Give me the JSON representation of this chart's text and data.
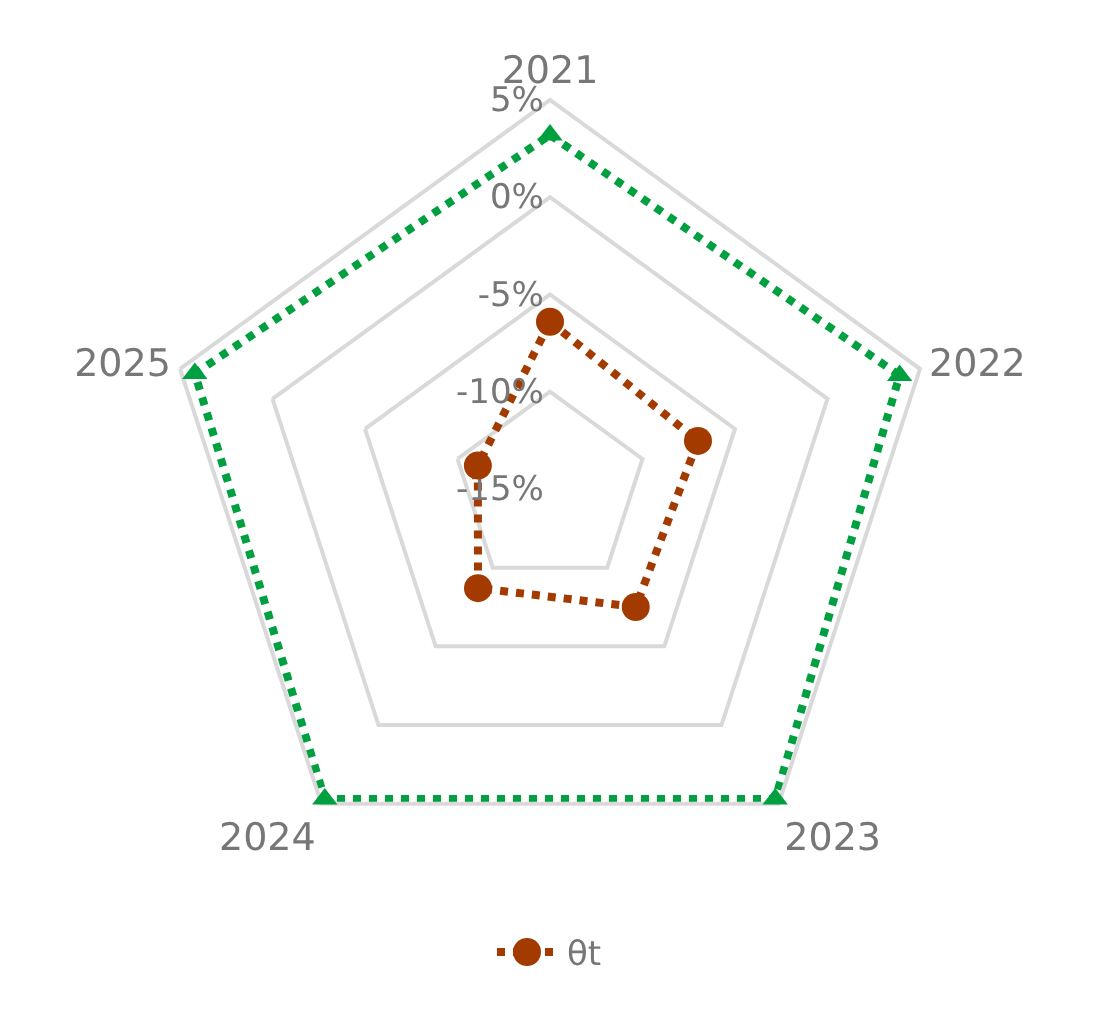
{
  "chart_data": {
    "type": "radar",
    "categories": [
      "2021",
      "2022",
      "2023",
      "2024",
      "2025"
    ],
    "series": [
      {
        "name": "θt",
        "color": "#a33a00",
        "values": [
          -6.4,
          -7.0,
          -7.5,
          -8.7,
          -11.1
        ],
        "marker": "circle"
      },
      {
        "color": "#00a040",
        "values": [
          3.2,
          3.9,
          4.7,
          4.7,
          4.2
        ],
        "marker": "triangle"
      }
    ],
    "ylim": [
      -15,
      5
    ],
    "yticks": [
      {
        "value": -15,
        "label": "-15%"
      },
      {
        "value": -10,
        "label": "-10%"
      },
      {
        "value": -5,
        "label": "-5%"
      },
      {
        "value": 0,
        "label": "0%"
      },
      {
        "value": 5,
        "label": "5%"
      }
    ],
    "grid": true,
    "legend": "bottom",
    "line_style": "dotted"
  }
}
